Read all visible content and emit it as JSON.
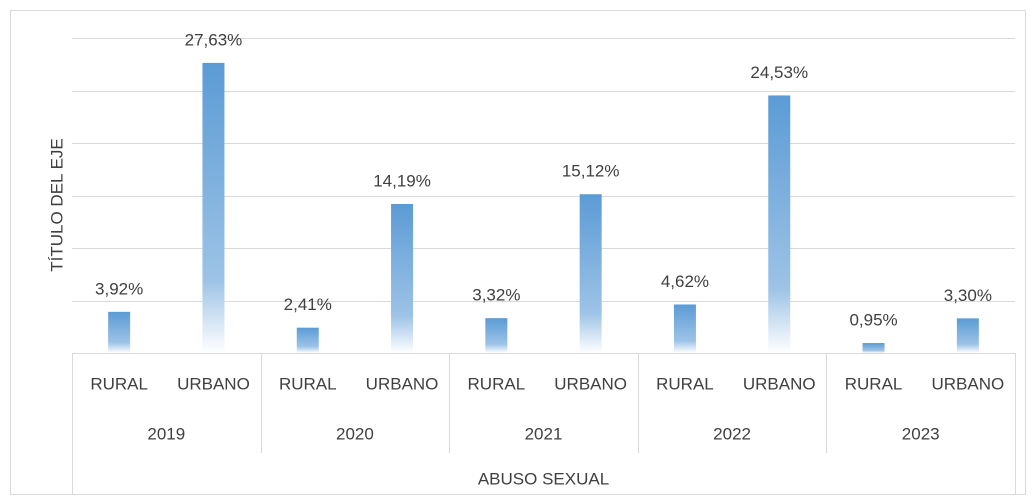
{
  "chart_data": {
    "type": "bar",
    "y_axis_label": "TÍTULO DEL EJE",
    "categories": [
      "RURAL",
      "URBANO",
      "RURAL",
      "URBANO",
      "RURAL",
      "URBANO",
      "RURAL",
      "URBANO",
      "RURAL",
      "URBANO"
    ],
    "groups": [
      "2019",
      "2020",
      "2021",
      "2022",
      "2023"
    ],
    "group_label": "ABUSO SEXUAL",
    "values": [
      3.92,
      27.63,
      2.41,
      14.19,
      3.32,
      15.12,
      4.62,
      24.53,
      0.95,
      3.3
    ],
    "value_labels": [
      "3,92%",
      "27,63%",
      "2,41%",
      "14,19%",
      "3,32%",
      "15,12%",
      "4,62%",
      "24,53%",
      "0,95%",
      "3,30%"
    ],
    "color": "#5b9bd5",
    "ylim": [
      0,
      30
    ],
    "yticks": [
      0,
      5,
      10,
      15,
      20,
      25,
      30
    ],
    "grid": true
  }
}
